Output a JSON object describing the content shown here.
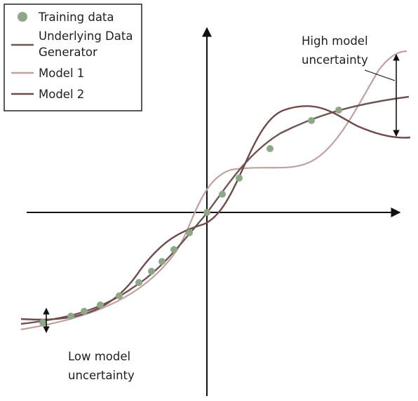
{
  "legend": {
    "training": "Training data",
    "underlying_line1": "Underlying Data",
    "underlying_line2": "Generator",
    "model1": "Model 1",
    "model2": "Model 2"
  },
  "annotations": {
    "high_line1": "High model",
    "high_line2": "uncertainty",
    "low_line1": "Low model",
    "low_line2": "uncertainty"
  },
  "colors": {
    "training_points": "#8ea786",
    "underlying": "#6b5451",
    "model1": "#c49f9f",
    "model2": "#6e4b4b",
    "axes": "#111111"
  }
}
